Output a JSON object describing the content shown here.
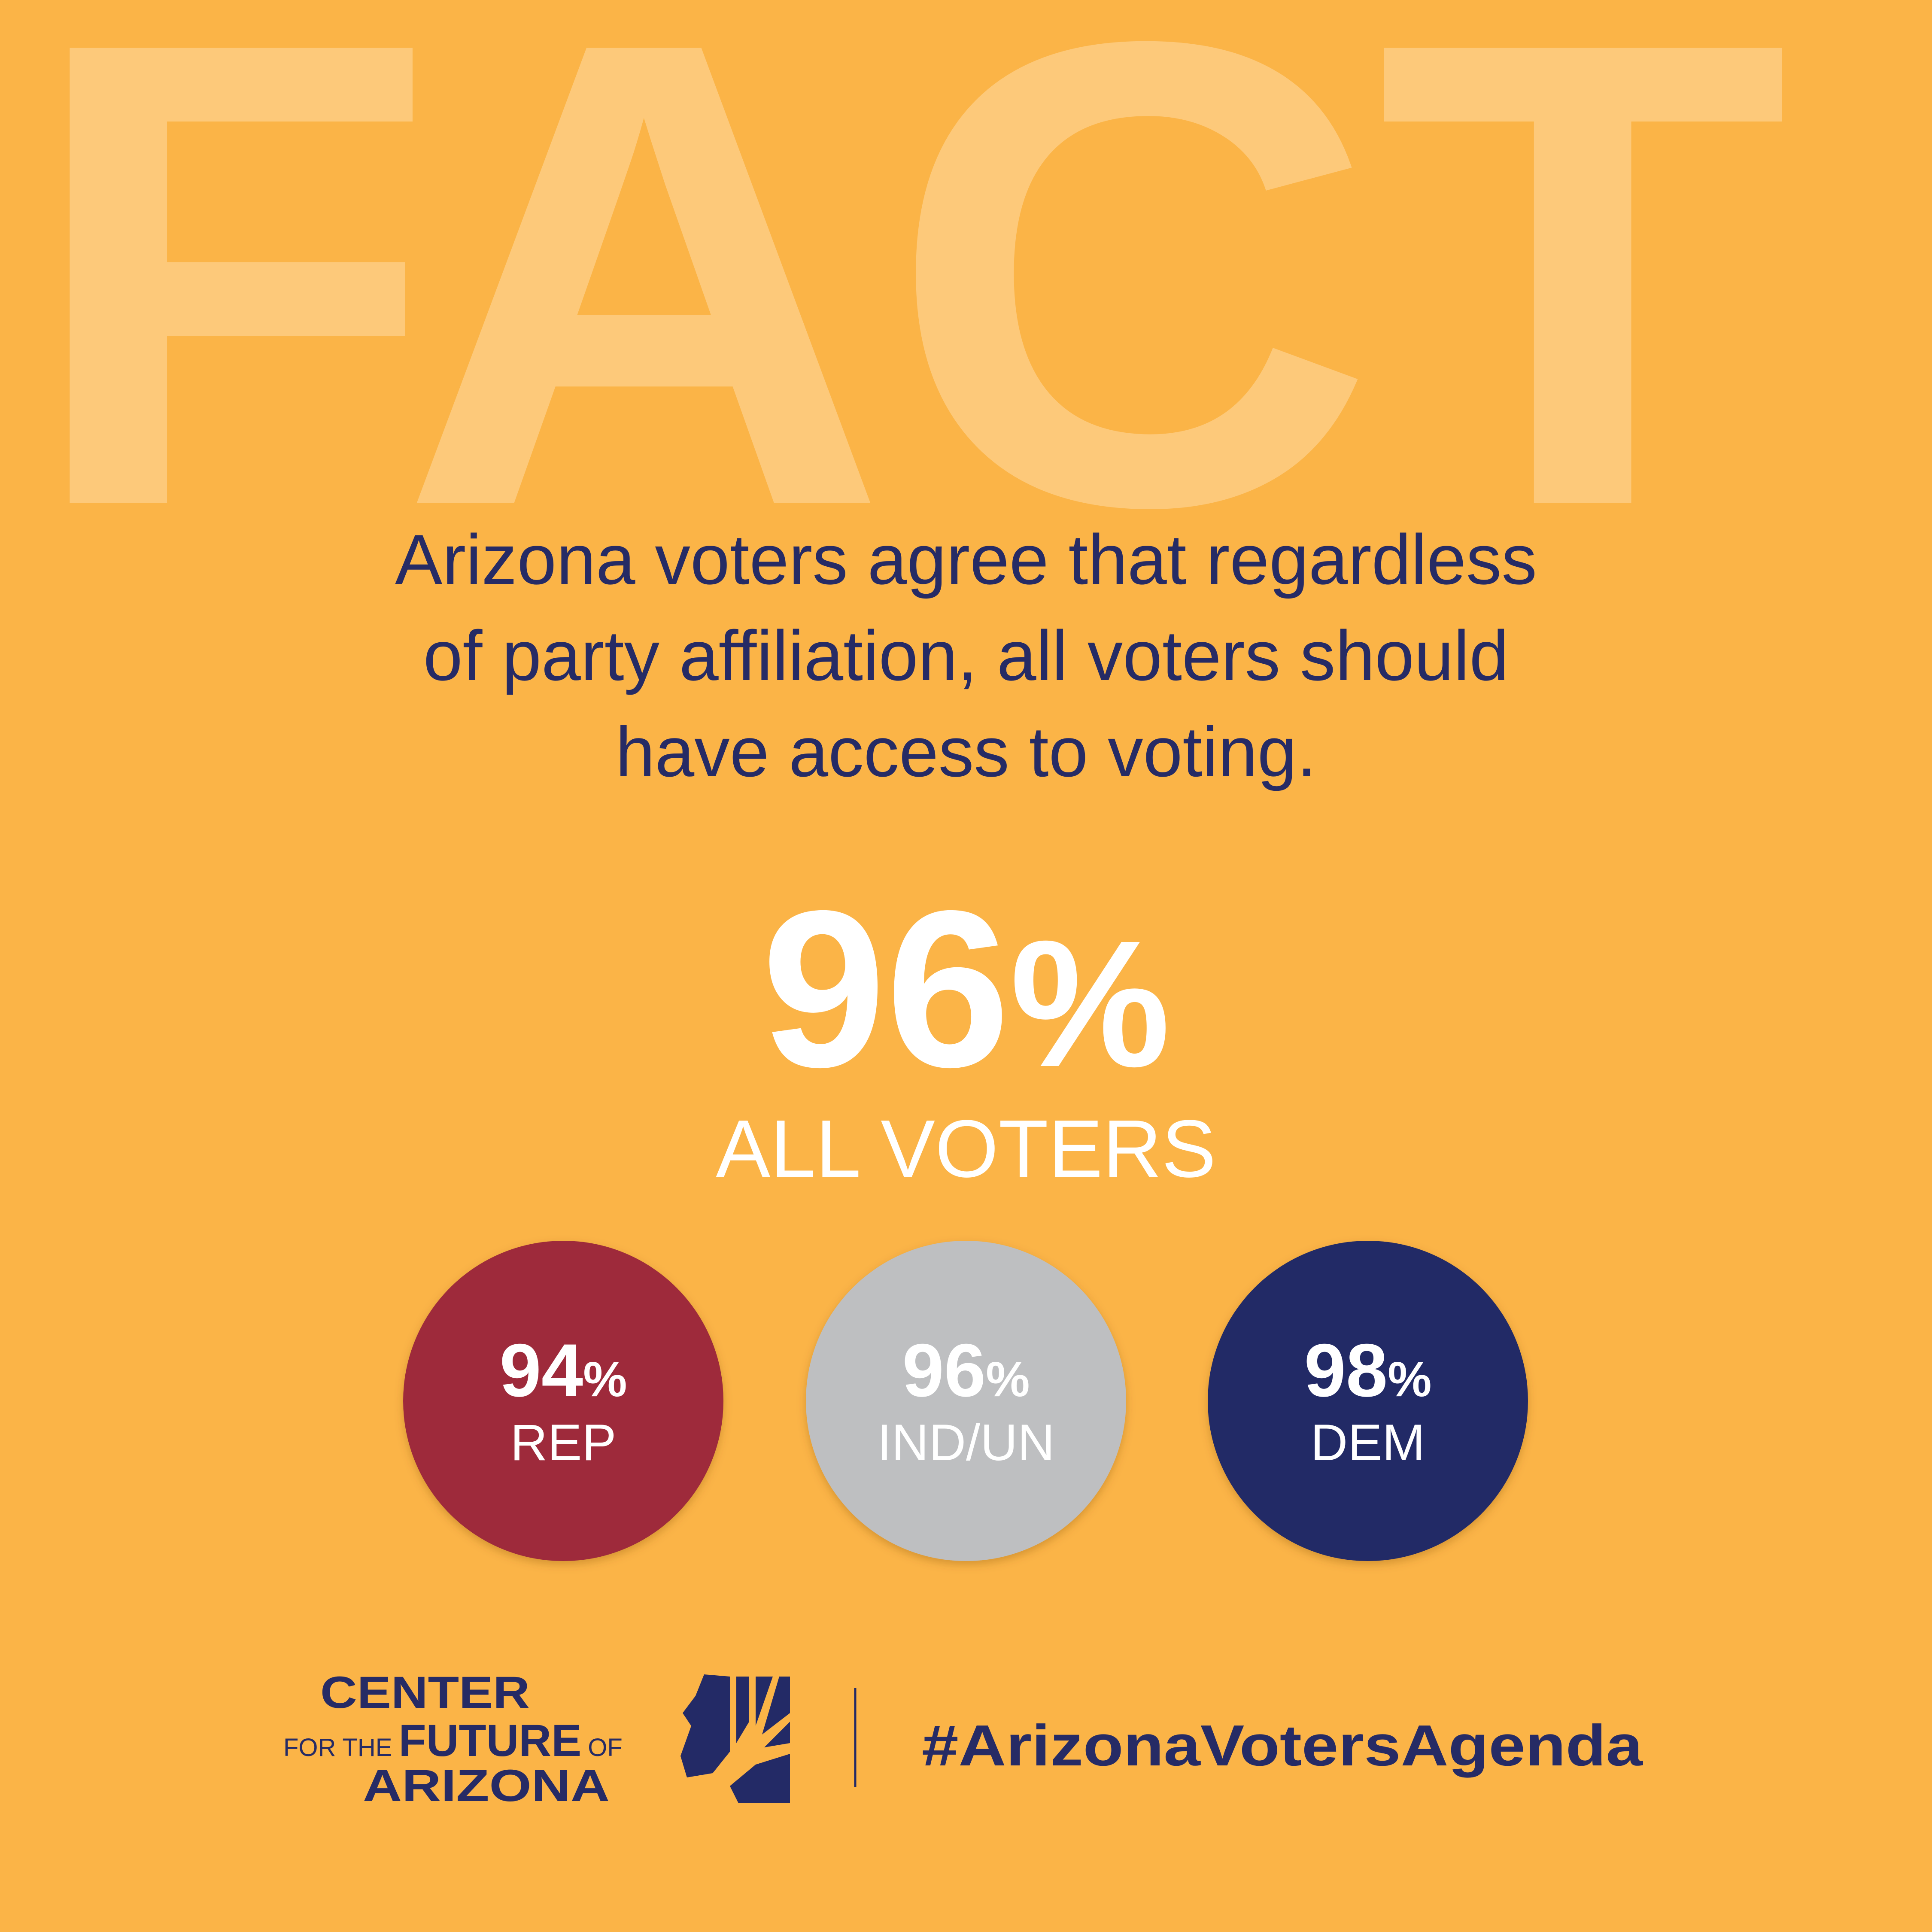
{
  "background_word": "FACT",
  "statement": {
    "lines": [
      "Arizona voters agree that regardless",
      "of party affiliation, all voters should",
      "have access to voting."
    ]
  },
  "headline": {
    "value": 96,
    "sign": "%",
    "label": "ALL VOTERS"
  },
  "groups": [
    {
      "value": 94,
      "sign": "%",
      "label": "REP",
      "color": "#9e2b3b"
    },
    {
      "value": 96,
      "sign": "%",
      "label": "IND/UN",
      "color": "#bebfc1"
    },
    {
      "value": 98,
      "sign": "%",
      "label": "DEM",
      "color": "#222b66"
    }
  ],
  "logo": {
    "line1": "CENTER",
    "small1": "FOR THE",
    "big": "FUTURE",
    "small2": "OF",
    "line3": "ARIZONA"
  },
  "hashtag": "#ArizonaVotersAgenda"
}
